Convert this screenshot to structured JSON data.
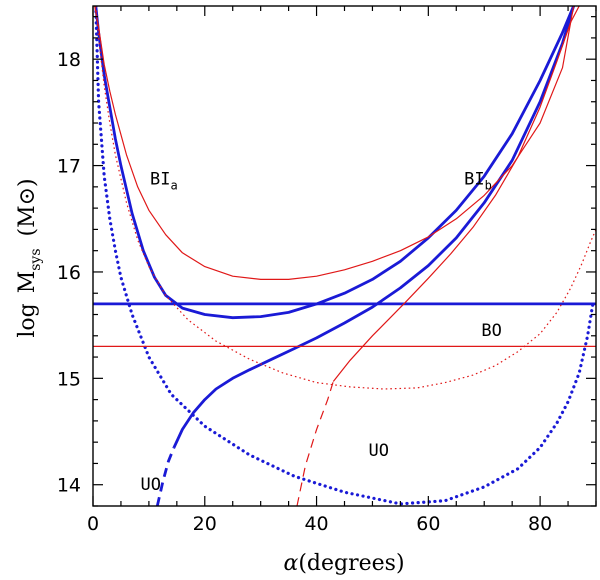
{
  "chart_data": {
    "type": "line",
    "title": "",
    "xlabel": "(degrees)",
    "xlabel_symbol": "α",
    "ylabel_prefix": "log",
    "ylabel_main": "M",
    "ylabel_sub": "sys",
    "ylabel_unit": "(M⊙)",
    "xlim": [
      0,
      90
    ],
    "ylim": [
      13.8,
      18.5
    ],
    "x_ticks": [
      0,
      20,
      40,
      60,
      80
    ],
    "x_tick_labels": [
      "0",
      "20",
      "40",
      "60",
      "80"
    ],
    "y_ticks": [
      14,
      15,
      16,
      17,
      18
    ],
    "y_tick_labels": [
      "14",
      "15",
      "16",
      "17",
      "18"
    ],
    "colors": {
      "blue": "#1a1ad6",
      "red": "#e01818",
      "axis": "#000000"
    },
    "series": [
      {
        "name": "blue-BO-horizontal",
        "color": "blue",
        "style": "solid",
        "width": 2.8,
        "x": [
          0,
          90
        ],
        "y": [
          15.7,
          15.7
        ]
      },
      {
        "name": "blue-BIa",
        "color": "blue",
        "style": "solid",
        "width": 2.8,
        "x": [
          0.5,
          1,
          2,
          3,
          4,
          5,
          7,
          9,
          11,
          13,
          16,
          20,
          25,
          30,
          35,
          40,
          45,
          50,
          55,
          60,
          65,
          70,
          75,
          80,
          84,
          86
        ],
        "y": [
          18.5,
          18.25,
          17.85,
          17.55,
          17.25,
          17.0,
          16.55,
          16.2,
          15.95,
          15.78,
          15.66,
          15.6,
          15.57,
          15.58,
          15.62,
          15.7,
          15.8,
          15.93,
          16.1,
          16.32,
          16.58,
          16.9,
          17.3,
          17.8,
          18.25,
          18.5
        ]
      },
      {
        "name": "blue-BIb",
        "color": "blue",
        "style": "solid",
        "width": 2.8,
        "x": [
          14.5,
          16,
          18,
          20,
          22,
          25,
          28,
          32,
          36,
          40,
          45,
          50,
          55,
          60,
          65,
          70,
          75,
          80,
          84,
          86
        ],
        "y": [
          14.35,
          14.52,
          14.68,
          14.8,
          14.9,
          15.0,
          15.08,
          15.18,
          15.28,
          15.38,
          15.52,
          15.67,
          15.85,
          16.06,
          16.32,
          16.65,
          17.05,
          17.6,
          18.15,
          18.5
        ]
      },
      {
        "name": "blue-BIb-dashed",
        "color": "blue",
        "style": "dashed",
        "width": 2.8,
        "x": [
          11.5,
          12.5,
          13.5,
          14.5
        ],
        "y": [
          13.8,
          14.03,
          14.22,
          14.35
        ]
      },
      {
        "name": "blue-UO",
        "color": "blue",
        "style": "dotted",
        "width": 3.2,
        "x": [
          0.5,
          1,
          2,
          3,
          4,
          5,
          7,
          10,
          14,
          20,
          28,
          36,
          45,
          55,
          63,
          70,
          76,
          80,
          83,
          85,
          87,
          88.5,
          89.5
        ],
        "y": [
          18.5,
          17.6,
          16.9,
          16.5,
          16.2,
          15.95,
          15.6,
          15.2,
          14.85,
          14.55,
          14.28,
          14.08,
          13.93,
          13.82,
          13.85,
          13.98,
          14.15,
          14.35,
          14.58,
          14.78,
          15.05,
          15.4,
          15.72
        ]
      },
      {
        "name": "red-BO-horizontal",
        "color": "red",
        "style": "solid",
        "width": 1.2,
        "x": [
          0,
          90
        ],
        "y": [
          15.3,
          15.3
        ]
      },
      {
        "name": "red-BIa",
        "color": "red",
        "style": "solid",
        "width": 1.2,
        "x": [
          0.3,
          1,
          2,
          3,
          4,
          6,
          8,
          10,
          13,
          16,
          20,
          25,
          30,
          35,
          40,
          45,
          50,
          55,
          60,
          65,
          70,
          75,
          80,
          84,
          86
        ],
        "y": [
          18.5,
          18.3,
          17.95,
          17.7,
          17.48,
          17.1,
          16.8,
          16.58,
          16.35,
          16.18,
          16.05,
          15.96,
          15.93,
          15.93,
          15.96,
          16.02,
          16.1,
          16.2,
          16.33,
          16.5,
          16.72,
          17.0,
          17.4,
          17.92,
          18.5
        ]
      },
      {
        "name": "red-BIb",
        "color": "red",
        "style": "solid",
        "width": 1.2,
        "x": [
          43,
          46,
          50,
          53,
          56,
          60,
          64,
          68,
          72,
          76,
          80,
          83,
          85.5,
          87
        ],
        "y": [
          14.97,
          15.17,
          15.4,
          15.56,
          15.72,
          15.94,
          16.17,
          16.42,
          16.72,
          17.08,
          17.55,
          17.98,
          18.35,
          18.5
        ]
      },
      {
        "name": "red-BIb-dashed",
        "color": "red",
        "style": "dashed",
        "width": 1.2,
        "x": [
          36.5,
          38,
          40,
          42,
          43
        ],
        "y": [
          13.8,
          14.18,
          14.52,
          14.8,
          14.97
        ]
      },
      {
        "name": "red-UO",
        "color": "red",
        "style": "dotted",
        "width": 1.2,
        "x": [
          0.5,
          1,
          2,
          3,
          4,
          6,
          8,
          10,
          13,
          17,
          22,
          28,
          34,
          40,
          46,
          52,
          58,
          63,
          68,
          72,
          76,
          80,
          83,
          85.5,
          87.5,
          89,
          90
        ],
        "y": [
          18.5,
          18.2,
          17.75,
          17.4,
          17.1,
          16.65,
          16.3,
          16.05,
          15.78,
          15.55,
          15.35,
          15.18,
          15.05,
          14.96,
          14.92,
          14.9,
          14.91,
          14.96,
          15.03,
          15.12,
          15.25,
          15.42,
          15.62,
          15.85,
          16.08,
          16.28,
          16.4
        ]
      }
    ],
    "annotations": [
      {
        "id": "bia",
        "main": "BI",
        "sub": "a",
        "x": 10.2,
        "y": 16.82
      },
      {
        "id": "bib",
        "main": "BI",
        "sub": "b",
        "x": 66.4,
        "y": 16.82
      },
      {
        "id": "bo",
        "main": "BO",
        "sub": "",
        "x": 69.5,
        "y": 15.4
      },
      {
        "id": "uo-red",
        "main": "UO",
        "sub": "",
        "x": 49.3,
        "y": 14.27
      },
      {
        "id": "uo-blue",
        "main": "UO",
        "sub": "",
        "x": 8.5,
        "y": 13.95
      }
    ]
  }
}
